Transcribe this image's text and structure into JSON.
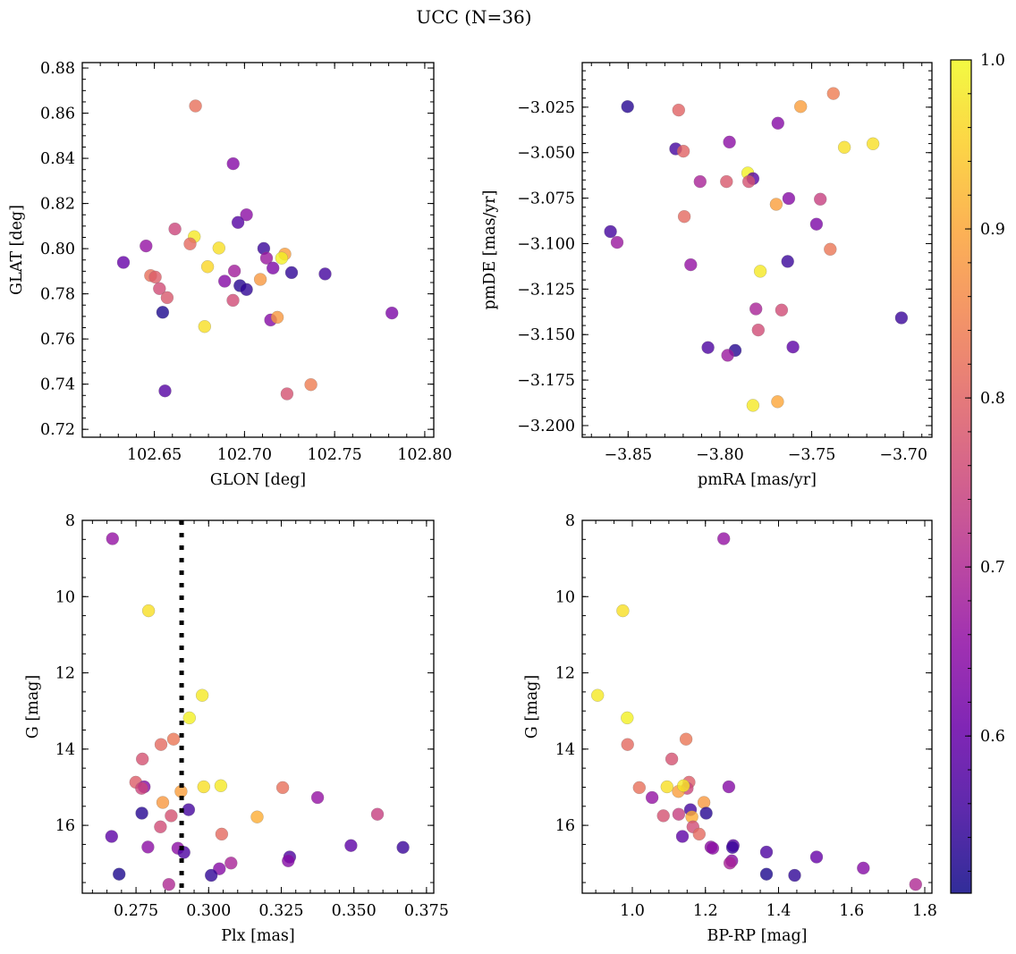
{
  "chart_data": {
    "type": "scatter",
    "title": "UCC (N=36)",
    "colorbar": {
      "colormap": "plasma",
      "range": [
        0.507,
        1.0
      ],
      "ticks": [
        0.6,
        0.7,
        0.8,
        0.9,
        1.0
      ],
      "tick_labels": [
        "0.6",
        "0.7",
        "0.8",
        "0.9",
        "1.0"
      ],
      "placement": "right"
    },
    "panels": [
      {
        "id": "glon-glat",
        "xlabel": "GLON [deg]",
        "ylabel": "GLAT [deg]",
        "xlim": [
          102.61,
          102.805
        ],
        "ylim": [
          0.7165,
          0.8824
        ],
        "xticks": [
          102.65,
          102.7,
          102.75,
          102.8
        ],
        "xtick_labels": [
          "102.65",
          "102.70",
          "102.75",
          "102.80"
        ],
        "yticks": [
          0.72,
          0.74,
          0.76,
          0.78,
          0.8,
          0.82,
          0.84,
          0.86,
          0.88
        ],
        "ytick_labels": [
          "0.72",
          "0.74",
          "0.76",
          "0.78",
          "0.80",
          "0.82",
          "0.84",
          "0.86",
          "0.88"
        ],
        "x_minor_step": 0.01,
        "y_minor_step": 0.005,
        "points": [
          [
            102.6728,
            0.8632,
            0.82
          ],
          [
            102.6937,
            0.8376,
            0.64
          ],
          [
            102.7011,
            0.815,
            0.65
          ],
          [
            102.6964,
            0.8116,
            0.58
          ],
          [
            102.6614,
            0.8087,
            0.75
          ],
          [
            102.6721,
            0.8053,
            0.98
          ],
          [
            102.6698,
            0.8021,
            0.81
          ],
          [
            102.6454,
            0.8012,
            0.66
          ],
          [
            102.6858,
            0.8003,
            0.97
          ],
          [
            102.7107,
            0.8001,
            0.55
          ],
          [
            102.7224,
            0.7976,
            0.89
          ],
          [
            102.7122,
            0.7958,
            0.67
          ],
          [
            102.7206,
            0.7958,
            0.99
          ],
          [
            102.6328,
            0.7939,
            0.6
          ],
          [
            102.6795,
            0.792,
            0.96
          ],
          [
            102.7158,
            0.7914,
            0.63
          ],
          [
            102.6944,
            0.7901,
            0.68
          ],
          [
            102.7261,
            0.7894,
            0.54
          ],
          [
            102.7447,
            0.7888,
            0.56
          ],
          [
            102.6479,
            0.7881,
            0.82
          ],
          [
            102.6505,
            0.7874,
            0.79
          ],
          [
            102.7088,
            0.7864,
            0.88
          ],
          [
            102.689,
            0.7856,
            0.64
          ],
          [
            102.6528,
            0.7823,
            0.76
          ],
          [
            102.6975,
            0.7836,
            0.53
          ],
          [
            102.7011,
            0.7819,
            0.54
          ],
          [
            102.6571,
            0.7783,
            0.78
          ],
          [
            102.6936,
            0.7771,
            0.76
          ],
          [
            102.6546,
            0.7718,
            0.52
          ],
          [
            102.7818,
            0.7715,
            0.63
          ],
          [
            102.7145,
            0.7684,
            0.64
          ],
          [
            102.7182,
            0.7696,
            0.88
          ],
          [
            102.6779,
            0.7655,
            0.97
          ],
          [
            102.6559,
            0.737,
            0.58
          ],
          [
            102.7236,
            0.7357,
            0.77
          ],
          [
            102.7368,
            0.7398,
            0.84
          ]
        ]
      },
      {
        "id": "pmra-pmde",
        "xlabel": "pmRA [mas/yr]",
        "ylabel": "pmDE [mas/yr]",
        "xlim": [
          -3.875,
          -3.6845
        ],
        "ylim": [
          -3.2064,
          -3.0005
        ],
        "xticks": [
          -3.85,
          -3.8,
          -3.75,
          -3.7
        ],
        "xtick_labels": [
          "−3.85",
          "−3.80",
          "−3.75",
          "−3.70"
        ],
        "yticks": [
          -3.2,
          -3.175,
          -3.15,
          -3.125,
          -3.1,
          -3.075,
          -3.05,
          -3.025
        ],
        "ytick_labels": [
          "−3.200",
          "−3.175",
          "−3.150",
          "−3.125",
          "−3.100",
          "−3.075",
          "−3.050",
          "−3.025"
        ],
        "x_minor_step": 0.01,
        "y_minor_step": 0.005,
        "points": [
          [
            -3.8503,
            -3.0247,
            0.53
          ],
          [
            -3.8225,
            -3.0266,
            0.8
          ],
          [
            -3.7382,
            -3.0175,
            0.84
          ],
          [
            -3.756,
            -3.0247,
            0.89
          ],
          [
            -3.7684,
            -3.0338,
            0.64
          ],
          [
            -3.7948,
            -3.0442,
            0.65
          ],
          [
            -3.8241,
            -3.0479,
            0.56
          ],
          [
            -3.8199,
            -3.0492,
            0.8
          ],
          [
            -3.7322,
            -3.0471,
            0.97
          ],
          [
            -3.7166,
            -3.0451,
            0.97
          ],
          [
            -3.7848,
            -3.0612,
            0.99
          ],
          [
            -3.782,
            -3.0643,
            0.58
          ],
          [
            -3.7843,
            -3.0659,
            0.77
          ],
          [
            -3.8108,
            -3.0659,
            0.69
          ],
          [
            -3.7964,
            -3.0659,
            0.78
          ],
          [
            -3.7625,
            -3.0752,
            0.64
          ],
          [
            -3.7453,
            -3.0756,
            0.74
          ],
          [
            -3.7693,
            -3.0784,
            0.89
          ],
          [
            -3.8194,
            -3.0851,
            0.81
          ],
          [
            -3.7474,
            -3.0893,
            0.63
          ],
          [
            -3.8596,
            -3.0934,
            0.56
          ],
          [
            -3.856,
            -3.0993,
            0.67
          ],
          [
            -3.7399,
            -3.1031,
            0.83
          ],
          [
            -3.7631,
            -3.1098,
            0.55
          ],
          [
            -3.8159,
            -3.1116,
            0.66
          ],
          [
            -3.778,
            -3.1152,
            0.98
          ],
          [
            -3.7804,
            -3.1359,
            0.69
          ],
          [
            -3.7664,
            -3.1365,
            0.76
          ],
          [
            -3.7791,
            -3.1475,
            0.76
          ],
          [
            -3.7011,
            -3.1408,
            0.55
          ],
          [
            -3.8065,
            -3.1571,
            0.57
          ],
          [
            -3.7602,
            -3.1568,
            0.59
          ],
          [
            -3.7917,
            -3.1587,
            0.53
          ],
          [
            -3.7958,
            -3.1614,
            0.67
          ],
          [
            -3.782,
            -3.1889,
            0.98
          ],
          [
            -3.7686,
            -3.1869,
            0.9
          ]
        ]
      },
      {
        "id": "plx-g",
        "xlabel": "Plx [mas]",
        "ylabel": "G [mag]",
        "xlim": [
          0.2565,
          0.3775
        ],
        "ylim": [
          17.78,
          8.0
        ],
        "y_inverted": true,
        "xticks": [
          0.275,
          0.3,
          0.325,
          0.35,
          0.375
        ],
        "xtick_labels": [
          "0.275",
          "0.300",
          "0.325",
          "0.350",
          "0.375"
        ],
        "yticks": [
          8,
          10,
          12,
          14,
          16
        ],
        "ytick_labels": [
          "8",
          "10",
          "12",
          "14",
          "16"
        ],
        "x_minor_step": 0.005,
        "y_minor_step": 0.5,
        "vline": {
          "x": 0.2907,
          "style": "dotted",
          "color": "#000000"
        },
        "points": [
          [
            0.2669,
            8.48,
            0.66
          ],
          [
            0.2793,
            10.37,
            0.97
          ],
          [
            0.2978,
            12.59,
            0.98
          ],
          [
            0.2934,
            13.18,
            0.99
          ],
          [
            0.2879,
            13.74,
            0.83
          ],
          [
            0.2836,
            13.88,
            0.81
          ],
          [
            0.2772,
            14.26,
            0.77
          ],
          [
            0.2749,
            14.87,
            0.79
          ],
          [
            0.2778,
            14.99,
            0.64
          ],
          [
            0.2769,
            15.03,
            0.75
          ],
          [
            0.2905,
            15.11,
            0.89
          ],
          [
            0.2983,
            14.99,
            0.97
          ],
          [
            0.3042,
            14.96,
            0.98
          ],
          [
            0.3255,
            15.01,
            0.82
          ],
          [
            0.3375,
            15.27,
            0.66
          ],
          [
            0.2842,
            15.4,
            0.88
          ],
          [
            0.2931,
            15.59,
            0.56
          ],
          [
            0.277,
            15.68,
            0.53
          ],
          [
            0.2871,
            15.75,
            0.77
          ],
          [
            0.3581,
            15.71,
            0.74
          ],
          [
            0.3167,
            15.78,
            0.91
          ],
          [
            0.2834,
            16.04,
            0.76
          ],
          [
            0.3045,
            16.23,
            0.81
          ],
          [
            0.2666,
            16.29,
            0.59
          ],
          [
            0.2791,
            16.57,
            0.65
          ],
          [
            0.349,
            16.53,
            0.59
          ],
          [
            0.3669,
            16.58,
            0.55
          ],
          [
            0.2894,
            16.6,
            0.65
          ],
          [
            0.2915,
            16.71,
            0.57
          ],
          [
            0.3279,
            16.83,
            0.57
          ],
          [
            0.3274,
            16.93,
            0.64
          ],
          [
            0.3077,
            16.99,
            0.69
          ],
          [
            0.3037,
            17.14,
            0.64
          ],
          [
            0.2692,
            17.28,
            0.52
          ],
          [
            0.3009,
            17.31,
            0.54
          ],
          [
            0.2863,
            17.55,
            0.7
          ]
        ]
      },
      {
        "id": "bprp-g",
        "xlabel": "BP-RP [mag]",
        "ylabel": "G [mag]",
        "xlim": [
          0.863,
          1.8196
        ],
        "ylim": [
          17.78,
          8.0
        ],
        "y_inverted": true,
        "xticks": [
          1.0,
          1.2,
          1.4,
          1.6,
          1.8
        ],
        "xtick_labels": [
          "1.0",
          "1.2",
          "1.4",
          "1.6",
          "1.8"
        ],
        "yticks": [
          8,
          10,
          12,
          14,
          16
        ],
        "ytick_labels": [
          "8",
          "10",
          "12",
          "14",
          "16"
        ],
        "x_minor_step": 0.05,
        "y_minor_step": 0.5,
        "points": [
          [
            1.25,
            8.48,
            0.66
          ],
          [
            0.974,
            10.37,
            0.97
          ],
          [
            0.905,
            12.59,
            0.98
          ],
          [
            0.986,
            13.18,
            0.99
          ],
          [
            1.147,
            13.74,
            0.83
          ],
          [
            0.987,
            13.88,
            0.81
          ],
          [
            1.108,
            14.26,
            0.77
          ],
          [
            1.155,
            14.87,
            0.79
          ],
          [
            1.264,
            14.99,
            0.64
          ],
          [
            1.15,
            15.03,
            0.75
          ],
          [
            1.126,
            15.11,
            0.89
          ],
          [
            1.095,
            14.99,
            0.97
          ],
          [
            1.14,
            14.96,
            0.98
          ],
          [
            1.019,
            15.01,
            0.82
          ],
          [
            1.054,
            15.27,
            0.66
          ],
          [
            1.196,
            15.4,
            0.88
          ],
          [
            1.159,
            15.59,
            0.56
          ],
          [
            1.202,
            15.68,
            0.53
          ],
          [
            1.127,
            15.71,
            0.74
          ],
          [
            1.085,
            15.75,
            0.77
          ],
          [
            1.163,
            15.78,
            0.91
          ],
          [
            1.166,
            16.04,
            0.76
          ],
          [
            1.183,
            16.23,
            0.81
          ],
          [
            1.137,
            16.29,
            0.59
          ],
          [
            1.215,
            16.57,
            0.65
          ],
          [
            1.276,
            16.53,
            0.59
          ],
          [
            1.274,
            16.58,
            0.55
          ],
          [
            1.22,
            16.6,
            0.65
          ],
          [
            1.367,
            16.7,
            0.57
          ],
          [
            1.504,
            16.83,
            0.6
          ],
          [
            1.272,
            16.93,
            0.64
          ],
          [
            1.267,
            16.99,
            0.69
          ],
          [
            1.632,
            17.12,
            0.64
          ],
          [
            1.367,
            17.28,
            0.52
          ],
          [
            1.444,
            17.31,
            0.54
          ],
          [
            1.775,
            17.55,
            0.7
          ]
        ]
      }
    ]
  }
}
